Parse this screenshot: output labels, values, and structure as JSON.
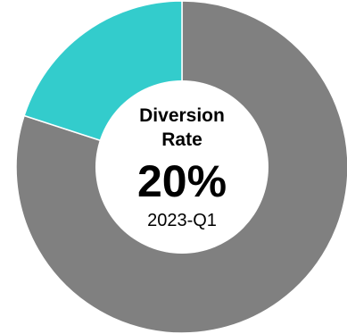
{
  "chart_data": {
    "type": "pie",
    "donut": true,
    "title_lines": [
      "Diversion",
      "Rate"
    ],
    "center_value": "20%",
    "subtitle": "2023-Q1",
    "slices": [
      {
        "value": 80,
        "color": "#808080"
      },
      {
        "value": 20,
        "color": "#33CCCC"
      }
    ],
    "colors": {
      "background": "#ffffff",
      "separator": "#ffffff",
      "text": "#000000"
    }
  }
}
